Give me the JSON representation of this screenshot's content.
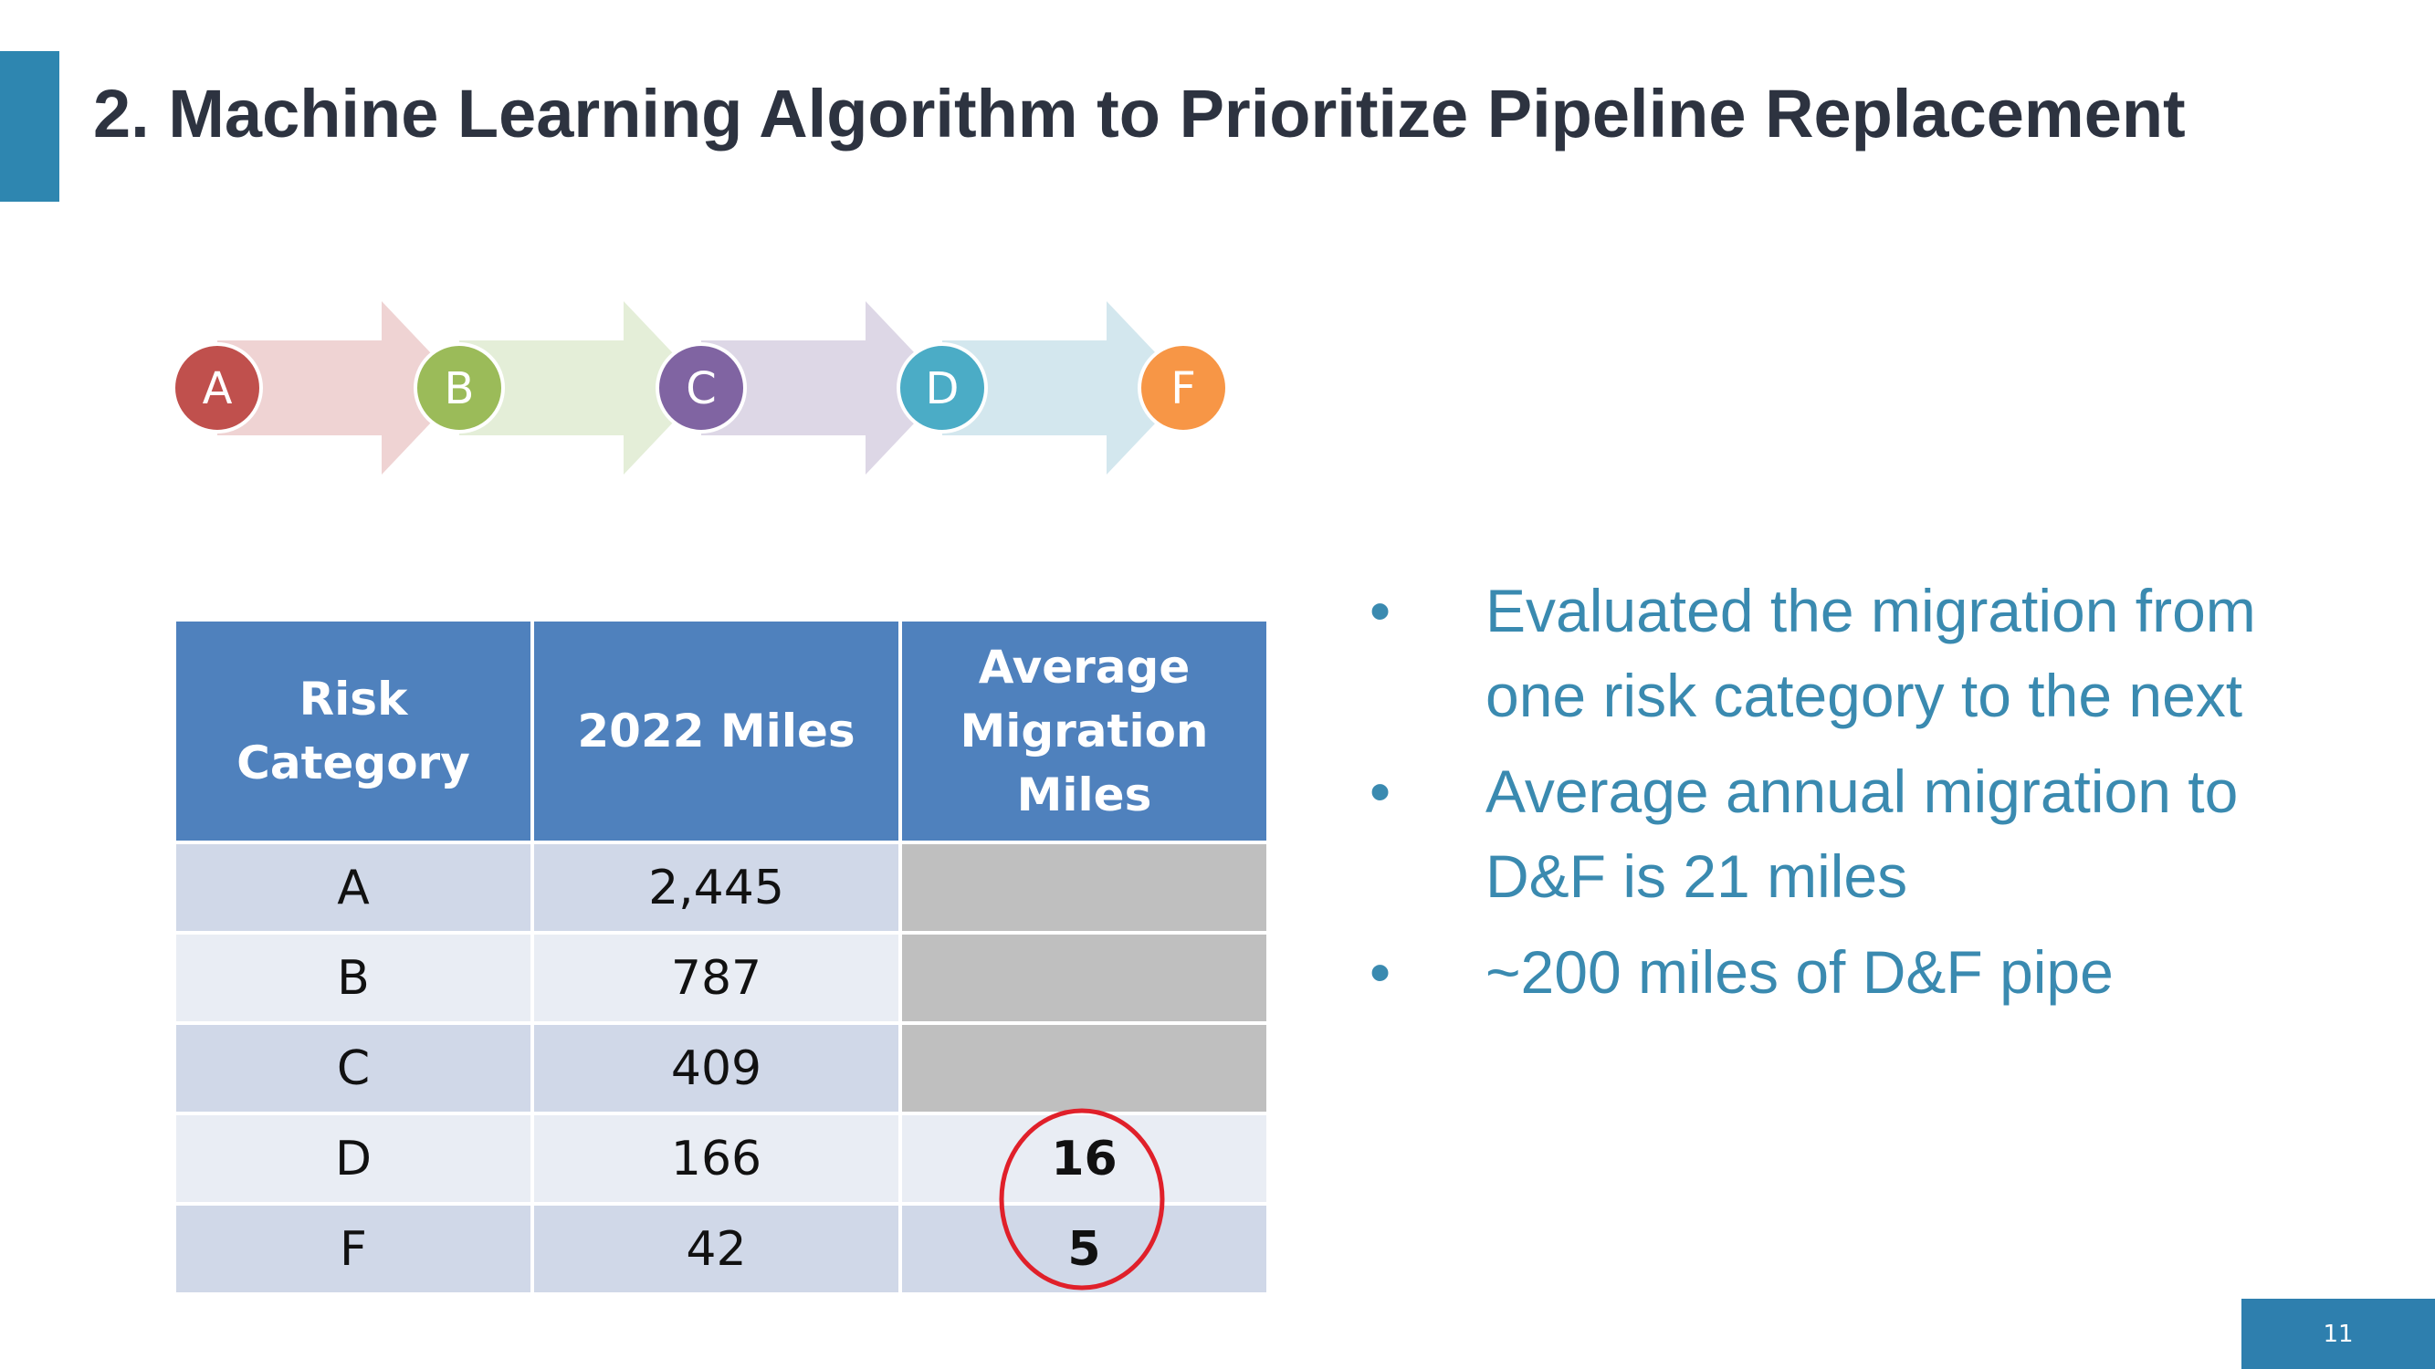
{
  "header": {
    "title": "2. Machine Learning Algorithm to Prioritize Pipeline Replacement"
  },
  "flow": {
    "steps": [
      "A",
      "B",
      "C",
      "D",
      "F"
    ]
  },
  "table": {
    "columns": [
      "Risk Category",
      "2022 Miles",
      "Average Migration Miles"
    ],
    "rows": [
      [
        "A",
        "2,445"
      ],
      [
        "B",
        "787"
      ],
      [
        "C",
        "409"
      ],
      [
        "D",
        "166",
        "16"
      ],
      [
        "F",
        "42",
        "5"
      ]
    ]
  },
  "bullets": [
    [
      "Evaluated the migration from",
      "one risk category to the next"
    ],
    [
      "Average annual migration to",
      "D&F is 21 miles"
    ],
    [
      "~200 miles of D&F pipe"
    ]
  ],
  "footer": {
    "page": "11"
  }
}
